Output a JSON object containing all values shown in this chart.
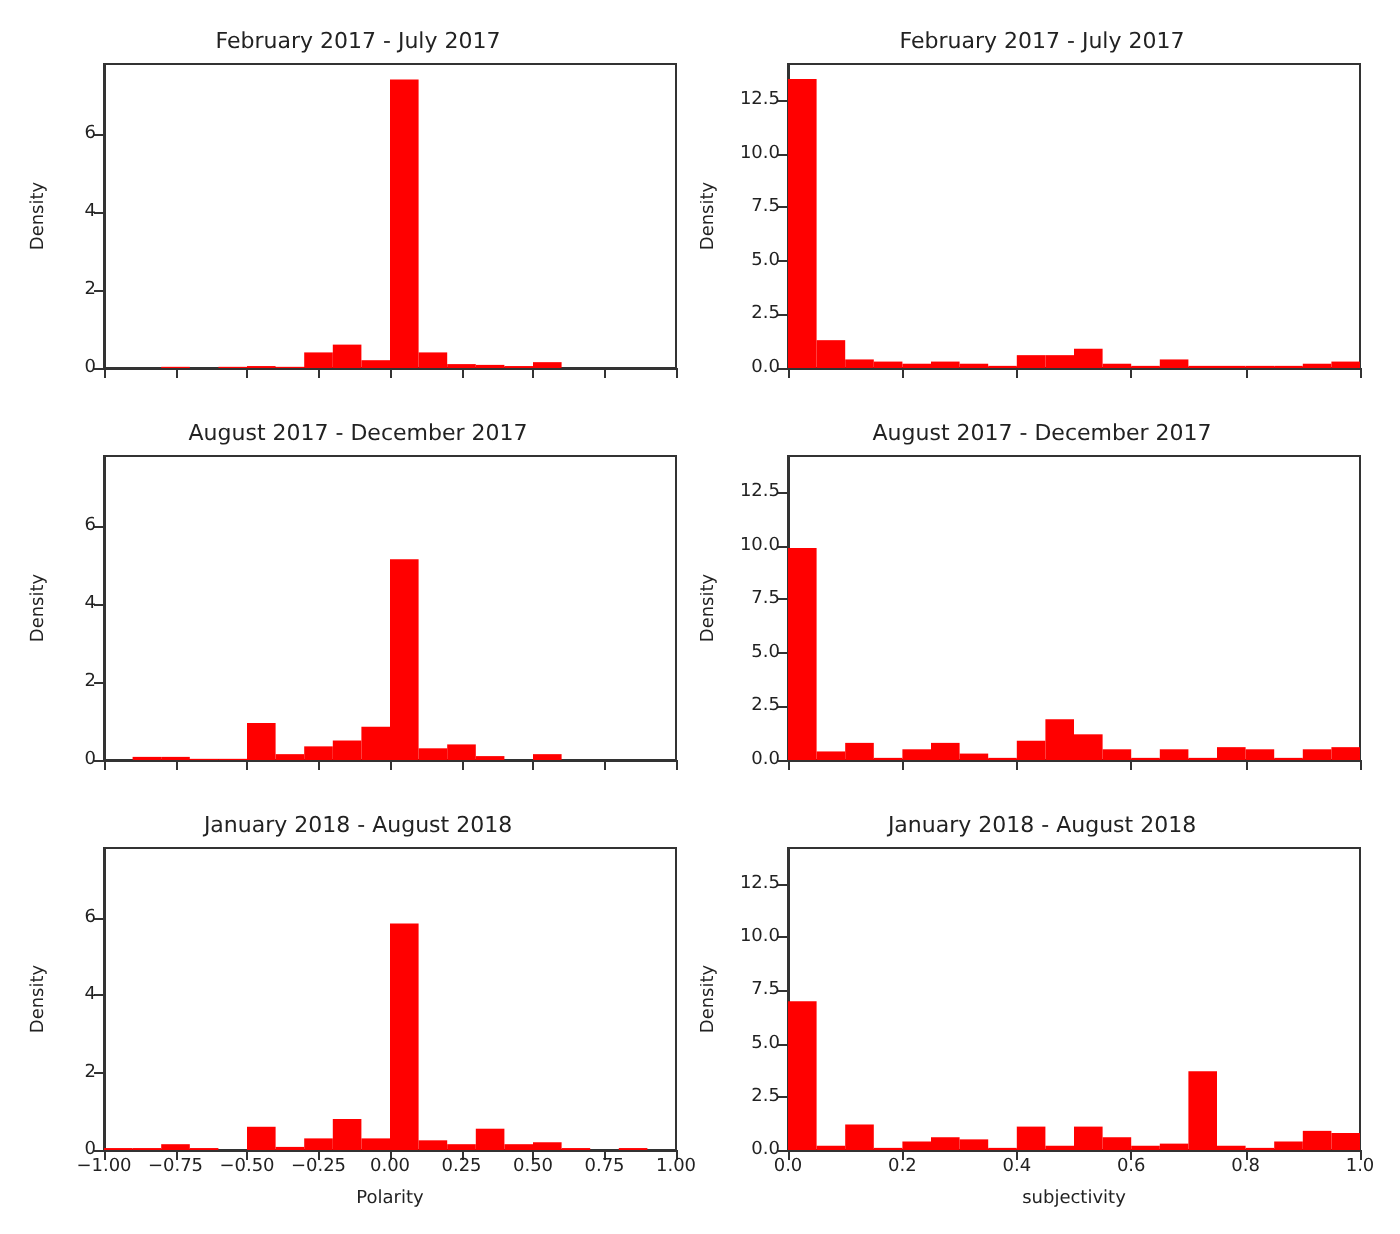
{
  "chart_data": [
    {
      "type": "histogram",
      "title": "February 2017 - July 2017",
      "ylabel": "Density",
      "color": "#ff0000",
      "bins": [
        -1.0,
        -0.9,
        -0.8,
        -0.7,
        -0.6,
        -0.5,
        -0.4,
        -0.3,
        -0.2,
        -0.1,
        0.0,
        0.1,
        0.2,
        0.3,
        0.4,
        0.5,
        0.6,
        0.7,
        0.8,
        0.9,
        1.0
      ],
      "values": [
        0,
        0,
        0.03,
        0,
        0.03,
        0.05,
        0.03,
        0.4,
        0.6,
        0.2,
        7.4,
        0.4,
        0.1,
        0.08,
        0.05,
        0.15,
        0,
        0,
        0,
        0
      ],
      "xlim": [
        -1,
        1
      ],
      "xticks": [
        {
          "value": -1,
          "label": null
        },
        {
          "value": -0.75,
          "label": null
        },
        {
          "value": -0.5,
          "label": null
        },
        {
          "value": -0.25,
          "label": null
        },
        {
          "value": 0,
          "label": null
        },
        {
          "value": 0.25,
          "label": null
        },
        {
          "value": 0.5,
          "label": null
        },
        {
          "value": 0.75,
          "label": null
        },
        {
          "value": 1,
          "label": null
        }
      ],
      "ylim": [
        0,
        7.8
      ],
      "yticks": [
        0,
        2,
        4,
        6
      ],
      "tick_labels": "y"
    },
    {
      "type": "histogram",
      "title": "February 2017 - July 2017",
      "ylabel": "Density",
      "color": "#ff0000",
      "bins": [
        0.0,
        0.05,
        0.1,
        0.15,
        0.2,
        0.25,
        0.3,
        0.35,
        0.4,
        0.45,
        0.5,
        0.55,
        0.6,
        0.65,
        0.7,
        0.75,
        0.8,
        0.85,
        0.9,
        0.95,
        1.0
      ],
      "values": [
        13.5,
        1.3,
        0.4,
        0.3,
        0.2,
        0.3,
        0.2,
        0.1,
        0.6,
        0.6,
        0.9,
        0.2,
        0.1,
        0.4,
        0.1,
        0.1,
        0.1,
        0.1,
        0.2,
        0.3
      ],
      "xlim": [
        0,
        1
      ],
      "xticks": [
        {
          "value": 0,
          "label": null
        },
        {
          "value": 0.2,
          "label": null
        },
        {
          "value": 0.4,
          "label": null
        },
        {
          "value": 0.6,
          "label": null
        },
        {
          "value": 0.8,
          "label": null
        },
        {
          "value": 1,
          "label": null
        }
      ],
      "ylim": [
        0,
        14.2
      ],
      "yticks": [
        {
          "value": 0,
          "label": "0.0"
        },
        2.5,
        {
          "value": 5,
          "label": "5.0"
        },
        7.5,
        {
          "value": 10,
          "label": "10.0"
        },
        12.5
      ],
      "tick_labels": "y"
    },
    {
      "type": "histogram",
      "title": "August 2017 - December 2017",
      "ylabel": "Density",
      "color": "#ff0000",
      "bins": [
        -1.0,
        -0.9,
        -0.8,
        -0.7,
        -0.6,
        -0.5,
        -0.4,
        -0.3,
        -0.2,
        -0.1,
        0.0,
        0.1,
        0.2,
        0.3,
        0.4,
        0.5,
        0.6,
        0.7,
        0.8,
        0.9,
        1.0
      ],
      "values": [
        0,
        0.08,
        0.08,
        0.03,
        0.03,
        0.95,
        0.15,
        0.35,
        0.5,
        0.85,
        5.15,
        0.3,
        0.4,
        0.1,
        0,
        0.15,
        0,
        0,
        0,
        0
      ],
      "xlim": [
        -1,
        1
      ],
      "xticks": [
        {
          "value": -1,
          "label": null
        },
        {
          "value": -0.75,
          "label": null
        },
        {
          "value": -0.5,
          "label": null
        },
        {
          "value": -0.25,
          "label": null
        },
        {
          "value": 0,
          "label": null
        },
        {
          "value": 0.25,
          "label": null
        },
        {
          "value": 0.5,
          "label": null
        },
        {
          "value": 0.75,
          "label": null
        },
        {
          "value": 1,
          "label": null
        }
      ],
      "ylim": [
        0,
        7.8
      ],
      "yticks": [
        0,
        2,
        4,
        6
      ],
      "tick_labels": "y"
    },
    {
      "type": "histogram",
      "title": "August 2017 - December 2017",
      "ylabel": "Density",
      "color": "#ff0000",
      "bins": [
        0.0,
        0.05,
        0.1,
        0.15,
        0.2,
        0.25,
        0.3,
        0.35,
        0.4,
        0.45,
        0.5,
        0.55,
        0.6,
        0.65,
        0.7,
        0.75,
        0.8,
        0.85,
        0.9,
        0.95,
        1.0
      ],
      "values": [
        9.9,
        0.4,
        0.8,
        0.1,
        0.5,
        0.8,
        0.3,
        0.1,
        0.9,
        1.9,
        1.2,
        0.5,
        0.1,
        0.5,
        0.1,
        0.6,
        0.5,
        0.1,
        0.5,
        0.6
      ],
      "xlim": [
        0,
        1
      ],
      "xticks": [
        {
          "value": 0,
          "label": null
        },
        {
          "value": 0.2,
          "label": null
        },
        {
          "value": 0.4,
          "label": null
        },
        {
          "value": 0.6,
          "label": null
        },
        {
          "value": 0.8,
          "label": null
        },
        {
          "value": 1,
          "label": null
        }
      ],
      "ylim": [
        0,
        14.2
      ],
      "yticks": [
        {
          "value": 0,
          "label": "0.0"
        },
        2.5,
        {
          "value": 5,
          "label": "5.0"
        },
        7.5,
        {
          "value": 10,
          "label": "10.0"
        },
        12.5
      ],
      "tick_labels": "y"
    },
    {
      "type": "histogram",
      "title": "January 2018 - August 2018",
      "xlabel": "Polarity",
      "ylabel": "Density",
      "color": "#ff0000",
      "bins": [
        -1.0,
        -0.9,
        -0.8,
        -0.7,
        -0.6,
        -0.5,
        -0.4,
        -0.3,
        -0.2,
        -0.1,
        0.0,
        0.1,
        0.2,
        0.3,
        0.4,
        0.5,
        0.6,
        0.7,
        0.8,
        0.9,
        1.0
      ],
      "values": [
        0.05,
        0.05,
        0.15,
        0.05,
        0,
        0.6,
        0.08,
        0.3,
        0.8,
        0.3,
        5.85,
        0.25,
        0.15,
        0.55,
        0.15,
        0.2,
        0.05,
        0,
        0.05,
        0
      ],
      "xlim": [
        -1,
        1
      ],
      "xticks": [
        {
          "value": -1,
          "label": "−1.00"
        },
        {
          "value": -0.75,
          "label": "−0.75"
        },
        {
          "value": -0.5,
          "label": "−0.50"
        },
        {
          "value": -0.25,
          "label": "−0.25"
        },
        {
          "value": 0,
          "label": "0.00"
        },
        {
          "value": 0.25,
          "label": "0.25"
        },
        {
          "value": 0.5,
          "label": "0.50"
        },
        {
          "value": 0.75,
          "label": "0.75"
        },
        {
          "value": 1,
          "label": "1.00"
        }
      ],
      "ylim": [
        0,
        7.8
      ],
      "yticks": [
        0,
        2,
        4,
        6
      ]
    },
    {
      "type": "histogram",
      "title": "January 2018 - August 2018",
      "xlabel": "subjectivity",
      "ylabel": "Density",
      "color": "#ff0000",
      "bins": [
        0.0,
        0.05,
        0.1,
        0.15,
        0.2,
        0.25,
        0.3,
        0.35,
        0.4,
        0.45,
        0.5,
        0.55,
        0.6,
        0.65,
        0.7,
        0.75,
        0.8,
        0.85,
        0.9,
        0.95,
        1.0
      ],
      "values": [
        7.0,
        0.2,
        1.2,
        0.1,
        0.4,
        0.6,
        0.5,
        0.1,
        1.1,
        0.2,
        1.1,
        0.6,
        0.2,
        0.3,
        3.7,
        0.2,
        0.1,
        0.4,
        0.9,
        0.8
      ],
      "xlim": [
        0,
        1
      ],
      "xticks": [
        {
          "value": 0,
          "label": "0.0"
        },
        0.2,
        0.4,
        0.6,
        0.8,
        {
          "value": 1,
          "label": "1.0"
        }
      ],
      "ylim": [
        0,
        14.2
      ],
      "yticks": [
        {
          "value": 0,
          "label": "0.0"
        },
        2.5,
        {
          "value": 5,
          "label": "5.0"
        },
        7.5,
        {
          "value": 10,
          "label": "10.0"
        },
        12.5
      ]
    }
  ]
}
